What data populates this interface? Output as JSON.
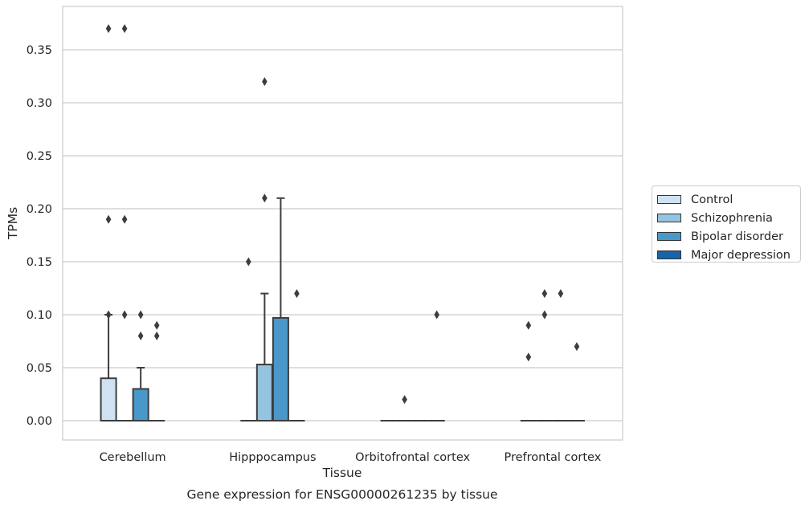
{
  "chart_data": {
    "type": "box",
    "title": "Gene expression for ENSG00000261235 by tissue",
    "xlabel": "Tissue",
    "ylabel": "TPMs",
    "ylim": [
      -0.018,
      0.39
    ],
    "yticks": [
      "0.00",
      "0.05",
      "0.10",
      "0.15",
      "0.20",
      "0.25",
      "0.30",
      "0.35"
    ],
    "grid": true,
    "legend_position": "right",
    "categories": [
      "Cerebellum",
      "Hipppocampus",
      "Orbitofrontal cortex",
      "Prefrontal cortex"
    ],
    "series": [
      {
        "name": "Control",
        "color": "#d0e1f2",
        "boxes": [
          {
            "q1": 0,
            "median": 0,
            "q3": 0.04,
            "whisker_low": 0,
            "whisker_high": 0.1,
            "outliers": [
              0.37,
              0.19,
              0.1
            ]
          },
          {
            "q1": 0,
            "median": 0,
            "q3": 0,
            "whisker_low": 0,
            "whisker_high": 0,
            "outliers": [
              0.15
            ]
          },
          {
            "q1": 0,
            "median": 0,
            "q3": 0,
            "whisker_low": 0,
            "whisker_high": 0,
            "outliers": []
          },
          {
            "q1": 0,
            "median": 0,
            "q3": 0,
            "whisker_low": 0,
            "whisker_high": 0,
            "outliers": [
              0.09,
              0.06
            ]
          }
        ]
      },
      {
        "name": "Schizophrenia",
        "color": "#94c4df",
        "boxes": [
          {
            "q1": 0,
            "median": 0,
            "q3": 0,
            "whisker_low": 0,
            "whisker_high": 0,
            "outliers": [
              0.37,
              0.19,
              0.1
            ]
          },
          {
            "q1": 0,
            "median": 0,
            "q3": 0.053,
            "whisker_low": 0,
            "whisker_high": 0.12,
            "outliers": [
              0.32,
              0.21
            ]
          },
          {
            "q1": 0,
            "median": 0,
            "q3": 0,
            "whisker_low": 0,
            "whisker_high": 0,
            "outliers": [
              0.02
            ]
          },
          {
            "q1": 0,
            "median": 0,
            "q3": 0,
            "whisker_low": 0,
            "whisker_high": 0,
            "outliers": [
              0.12,
              0.1
            ]
          }
        ]
      },
      {
        "name": "Bipolar disorder",
        "color": "#4a98c9",
        "boxes": [
          {
            "q1": 0,
            "median": 0,
            "q3": 0.03,
            "whisker_low": 0,
            "whisker_high": 0.05,
            "outliers": [
              0.1,
              0.08
            ]
          },
          {
            "q1": 0,
            "median": 0,
            "q3": 0.097,
            "whisker_low": 0,
            "whisker_high": 0.21,
            "outliers": []
          },
          {
            "q1": 0,
            "median": 0,
            "q3": 0,
            "whisker_low": 0,
            "whisker_high": 0,
            "outliers": []
          },
          {
            "q1": 0,
            "median": 0,
            "q3": 0,
            "whisker_low": 0,
            "whisker_high": 0,
            "outliers": [
              0.12
            ]
          }
        ]
      },
      {
        "name": "Major depression",
        "color": "#1764ab",
        "boxes": [
          {
            "q1": 0,
            "median": 0,
            "q3": 0,
            "whisker_low": 0,
            "whisker_high": 0,
            "outliers": [
              0.09,
              0.08
            ]
          },
          {
            "q1": 0,
            "median": 0,
            "q3": 0,
            "whisker_low": 0,
            "whisker_high": 0,
            "outliers": [
              0.12
            ]
          },
          {
            "q1": 0,
            "median": 0,
            "q3": 0,
            "whisker_low": 0,
            "whisker_high": 0,
            "outliers": [
              0.1
            ]
          },
          {
            "q1": 0,
            "median": 0,
            "q3": 0,
            "whisker_low": 0,
            "whisker_high": 0,
            "outliers": [
              0.07
            ]
          }
        ]
      }
    ]
  }
}
